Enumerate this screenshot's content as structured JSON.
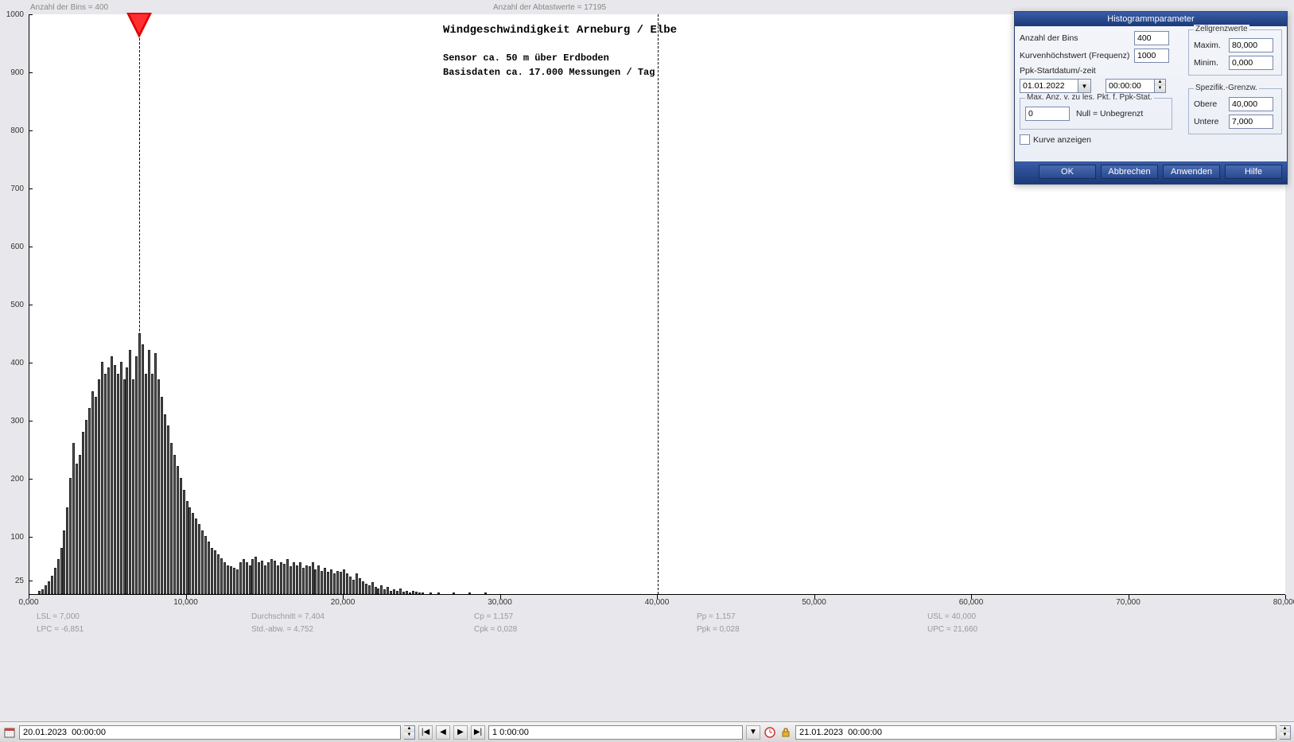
{
  "header": {
    "bins_label": "Anzahl der Bins =   400",
    "samples_label": "Anzahl der Abtastwerte = 17195"
  },
  "chart": {
    "type": "histogram",
    "title": "Windgeschwindigkeit  Arneburg / Elbe",
    "subtitle1": "Sensor ca. 50 m über Erdboden",
    "subtitle2": "Basisdaten ca. 17.000 Messungen / Tag",
    "title_fontsize": 14,
    "subtitle_fontsize": 12,
    "title_font": "Courier New",
    "background_color": "#ffffff",
    "bar_fill": "#555555",
    "bar_border": "#222222",
    "marker_color": "#e20000",
    "marker_x": 7.0,
    "vline_x": 40.0,
    "xlim": [
      0,
      80
    ],
    "ylim": [
      0,
      1000
    ],
    "ytick_step": 100,
    "xtick_step": 10,
    "xtick_format": "0,000",
    "yticks": [
      "25",
      "100",
      "200",
      "300",
      "400",
      "500",
      "600",
      "700",
      "800",
      "900",
      "1000"
    ],
    "xticks": [
      "0,000",
      "10,000",
      "20,000",
      "30,000",
      "40,000",
      "50,000",
      "60,000",
      "70,000",
      "80,000"
    ],
    "bin_width": 0.2,
    "bars": [
      {
        "x": 0.6,
        "y": 5
      },
      {
        "x": 0.8,
        "y": 8
      },
      {
        "x": 1.0,
        "y": 15
      },
      {
        "x": 1.2,
        "y": 22
      },
      {
        "x": 1.4,
        "y": 32
      },
      {
        "x": 1.6,
        "y": 45
      },
      {
        "x": 1.8,
        "y": 60
      },
      {
        "x": 2.0,
        "y": 80
      },
      {
        "x": 2.2,
        "y": 110
      },
      {
        "x": 2.4,
        "y": 150
      },
      {
        "x": 2.6,
        "y": 200
      },
      {
        "x": 2.8,
        "y": 260
      },
      {
        "x": 3.0,
        "y": 225
      },
      {
        "x": 3.2,
        "y": 240
      },
      {
        "x": 3.4,
        "y": 280
      },
      {
        "x": 3.6,
        "y": 300
      },
      {
        "x": 3.8,
        "y": 320
      },
      {
        "x": 4.0,
        "y": 350
      },
      {
        "x": 4.2,
        "y": 340
      },
      {
        "x": 4.4,
        "y": 370
      },
      {
        "x": 4.6,
        "y": 400
      },
      {
        "x": 4.8,
        "y": 380
      },
      {
        "x": 5.0,
        "y": 390
      },
      {
        "x": 5.2,
        "y": 410
      },
      {
        "x": 5.4,
        "y": 395
      },
      {
        "x": 5.6,
        "y": 380
      },
      {
        "x": 5.8,
        "y": 400
      },
      {
        "x": 6.0,
        "y": 370
      },
      {
        "x": 6.2,
        "y": 390
      },
      {
        "x": 6.4,
        "y": 420
      },
      {
        "x": 6.6,
        "y": 370
      },
      {
        "x": 6.8,
        "y": 410
      },
      {
        "x": 7.0,
        "y": 450
      },
      {
        "x": 7.2,
        "y": 430
      },
      {
        "x": 7.4,
        "y": 380
      },
      {
        "x": 7.6,
        "y": 420
      },
      {
        "x": 7.8,
        "y": 380
      },
      {
        "x": 8.0,
        "y": 415
      },
      {
        "x": 8.2,
        "y": 370
      },
      {
        "x": 8.4,
        "y": 340
      },
      {
        "x": 8.6,
        "y": 310
      },
      {
        "x": 8.8,
        "y": 290
      },
      {
        "x": 9.0,
        "y": 260
      },
      {
        "x": 9.2,
        "y": 240
      },
      {
        "x": 9.4,
        "y": 220
      },
      {
        "x": 9.6,
        "y": 200
      },
      {
        "x": 9.8,
        "y": 180
      },
      {
        "x": 10.0,
        "y": 160
      },
      {
        "x": 10.2,
        "y": 150
      },
      {
        "x": 10.4,
        "y": 140
      },
      {
        "x": 10.6,
        "y": 130
      },
      {
        "x": 10.8,
        "y": 120
      },
      {
        "x": 11.0,
        "y": 110
      },
      {
        "x": 11.2,
        "y": 100
      },
      {
        "x": 11.4,
        "y": 90
      },
      {
        "x": 11.6,
        "y": 80
      },
      {
        "x": 11.8,
        "y": 75
      },
      {
        "x": 12.0,
        "y": 68
      },
      {
        "x": 12.2,
        "y": 62
      },
      {
        "x": 12.4,
        "y": 55
      },
      {
        "x": 12.6,
        "y": 50
      },
      {
        "x": 12.8,
        "y": 48
      },
      {
        "x": 13.0,
        "y": 45
      },
      {
        "x": 13.2,
        "y": 42
      },
      {
        "x": 13.4,
        "y": 55
      },
      {
        "x": 13.6,
        "y": 60
      },
      {
        "x": 13.8,
        "y": 55
      },
      {
        "x": 14.0,
        "y": 50
      },
      {
        "x": 14.2,
        "y": 60
      },
      {
        "x": 14.4,
        "y": 65
      },
      {
        "x": 14.6,
        "y": 55
      },
      {
        "x": 14.8,
        "y": 58
      },
      {
        "x": 15.0,
        "y": 50
      },
      {
        "x": 15.2,
        "y": 55
      },
      {
        "x": 15.4,
        "y": 60
      },
      {
        "x": 15.6,
        "y": 58
      },
      {
        "x": 15.8,
        "y": 50
      },
      {
        "x": 16.0,
        "y": 55
      },
      {
        "x": 16.2,
        "y": 52
      },
      {
        "x": 16.4,
        "y": 60
      },
      {
        "x": 16.6,
        "y": 48
      },
      {
        "x": 16.8,
        "y": 55
      },
      {
        "x": 17.0,
        "y": 50
      },
      {
        "x": 17.2,
        "y": 55
      },
      {
        "x": 17.4,
        "y": 45
      },
      {
        "x": 17.6,
        "y": 50
      },
      {
        "x": 17.8,
        "y": 48
      },
      {
        "x": 18.0,
        "y": 55
      },
      {
        "x": 18.2,
        "y": 42
      },
      {
        "x": 18.4,
        "y": 50
      },
      {
        "x": 18.6,
        "y": 40
      },
      {
        "x": 18.8,
        "y": 45
      },
      {
        "x": 19.0,
        "y": 38
      },
      {
        "x": 19.2,
        "y": 42
      },
      {
        "x": 19.4,
        "y": 35
      },
      {
        "x": 19.6,
        "y": 40
      },
      {
        "x": 19.8,
        "y": 38
      },
      {
        "x": 20.0,
        "y": 42
      },
      {
        "x": 20.2,
        "y": 35
      },
      {
        "x": 20.4,
        "y": 30
      },
      {
        "x": 20.6,
        "y": 25
      },
      {
        "x": 20.8,
        "y": 35
      },
      {
        "x": 21.0,
        "y": 28
      },
      {
        "x": 21.2,
        "y": 22
      },
      {
        "x": 21.4,
        "y": 18
      },
      {
        "x": 21.6,
        "y": 15
      },
      {
        "x": 21.8,
        "y": 20
      },
      {
        "x": 22.0,
        "y": 12
      },
      {
        "x": 22.2,
        "y": 10
      },
      {
        "x": 22.4,
        "y": 15
      },
      {
        "x": 22.6,
        "y": 8
      },
      {
        "x": 22.8,
        "y": 12
      },
      {
        "x": 23.0,
        "y": 6
      },
      {
        "x": 23.2,
        "y": 8
      },
      {
        "x": 23.4,
        "y": 5
      },
      {
        "x": 23.6,
        "y": 10
      },
      {
        "x": 23.8,
        "y": 4
      },
      {
        "x": 24.0,
        "y": 6
      },
      {
        "x": 24.2,
        "y": 3
      },
      {
        "x": 24.4,
        "y": 5
      },
      {
        "x": 24.6,
        "y": 4
      },
      {
        "x": 24.8,
        "y": 3
      },
      {
        "x": 25.0,
        "y": 2
      },
      {
        "x": 25.5,
        "y": 3
      },
      {
        "x": 26.0,
        "y": 2
      },
      {
        "x": 27.0,
        "y": 2
      },
      {
        "x": 28.0,
        "y": 1
      },
      {
        "x": 29.0,
        "y": 1
      }
    ],
    "stats_row1": {
      "lsl": "LSL = 7,000",
      "avg": "Durchschnitt = 7,404",
      "cp": "Cp  = 1,157",
      "pp": "Pp  = 1,157",
      "usl": "USL = 40,000"
    },
    "stats_row2": {
      "lpc": "LPC = -6,851",
      "std": "Std.-abw. = 4,752",
      "cpk": "Cpk = 0,028",
      "ppk": "Ppk = 0,028",
      "upc": "UPC = 21,660"
    }
  },
  "dialog": {
    "title": "Histogrammparameter",
    "bins_label": "Anzahl der Bins",
    "bins_value": "400",
    "maxfreq_label": "Kurvenhöchstwert (Frequenz)",
    "maxfreq_value": "1000",
    "ppk_date_label": "Ppk-Startdatum/-zeit",
    "date_value": "01.01.2022",
    "time_value": "00:00:00",
    "maxpts_fieldset": "Max. Anz. v. zu les. Pkt. f. Ppk-Stat.",
    "maxpts_value": "0",
    "maxpts_note": "Null = Unbegrenzt",
    "show_curve_label": "Kurve anzeigen",
    "cell_fieldset": "Zellgrenzwerte",
    "max_label": "Maxim.",
    "max_value": "80,000",
    "min_label": "Minim.",
    "min_value": "0,000",
    "spec_fieldset": "Spezifik.-Grenzw.",
    "upper_label": "Obere",
    "upper_value": "40,000",
    "lower_label": "Untere",
    "lower_value": "7,000",
    "btn_ok": "OK",
    "btn_cancel": "Abbrechen",
    "btn_apply": "Anwenden",
    "btn_help": "Hilfe"
  },
  "toolbar": {
    "start_time": "20.01.2023  00:00:00",
    "span": "1 0:00:00",
    "end_time": "21.01.2023  00:00:00"
  }
}
